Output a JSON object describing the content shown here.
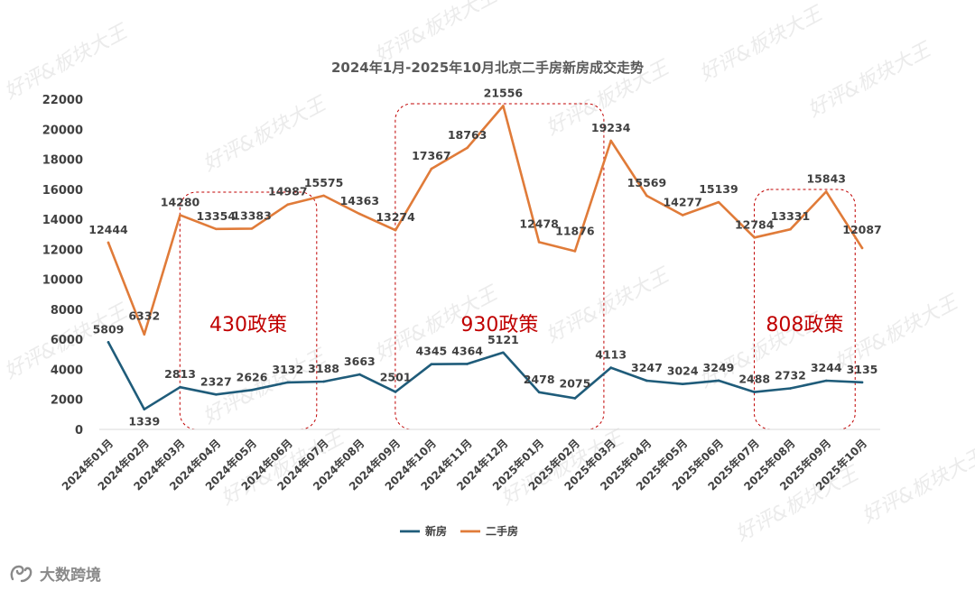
{
  "chart_data": {
    "type": "line",
    "title": "2024年1月-2025年10月北京二手房新房成交走势",
    "categories": [
      "2024年01月",
      "2024年02月",
      "2024年03月",
      "2024年04月",
      "2024年05月",
      "2024年06月",
      "2024年07月",
      "2024年08月",
      "2024年09月",
      "2024年10月",
      "2024年11月",
      "2024年12月",
      "2025年01月",
      "2025年02月",
      "2025年03月",
      "2025年04月",
      "2025年05月",
      "2025年06月",
      "2025年07月",
      "2025年08月",
      "2025年09月",
      "2025年10月"
    ],
    "series": [
      {
        "name": "新房",
        "color": "#1f5c7a",
        "values": [
          5809,
          1339,
          2813,
          2327,
          2626,
          3132,
          3188,
          3663,
          2501,
          4345,
          4364,
          5121,
          2478,
          2075,
          4113,
          3247,
          3024,
          3249,
          2488,
          2732,
          3244,
          3135
        ]
      },
      {
        "name": "二手房",
        "color": "#e07b39",
        "values": [
          12444,
          6332,
          14280,
          13354,
          13383,
          14987,
          15575,
          14363,
          13274,
          17367,
          18763,
          21556,
          12478,
          11876,
          19234,
          15569,
          14277,
          15139,
          12784,
          13331,
          15843,
          12087
        ]
      }
    ],
    "ylim": [
      0,
      22000
    ],
    "yticks": [
      "0",
      "2000",
      "4000",
      "6000",
      "8000",
      "10000",
      "12000",
      "14000",
      "16000",
      "18000",
      "20000",
      "22000"
    ],
    "grid": false,
    "legend_position": "bottom",
    "annotations": [
      {
        "label": "430政策",
        "from_index": 3,
        "to_index": 5
      },
      {
        "label": "930政策",
        "from_index": 9,
        "to_index": 13
      },
      {
        "label": "808政策",
        "from_index": 19,
        "to_index": 20
      }
    ],
    "annotation_color": "#c00000"
  },
  "footer": {
    "source_label": "大数跨境"
  },
  "watermark": {
    "text": "好评&板块大王"
  }
}
